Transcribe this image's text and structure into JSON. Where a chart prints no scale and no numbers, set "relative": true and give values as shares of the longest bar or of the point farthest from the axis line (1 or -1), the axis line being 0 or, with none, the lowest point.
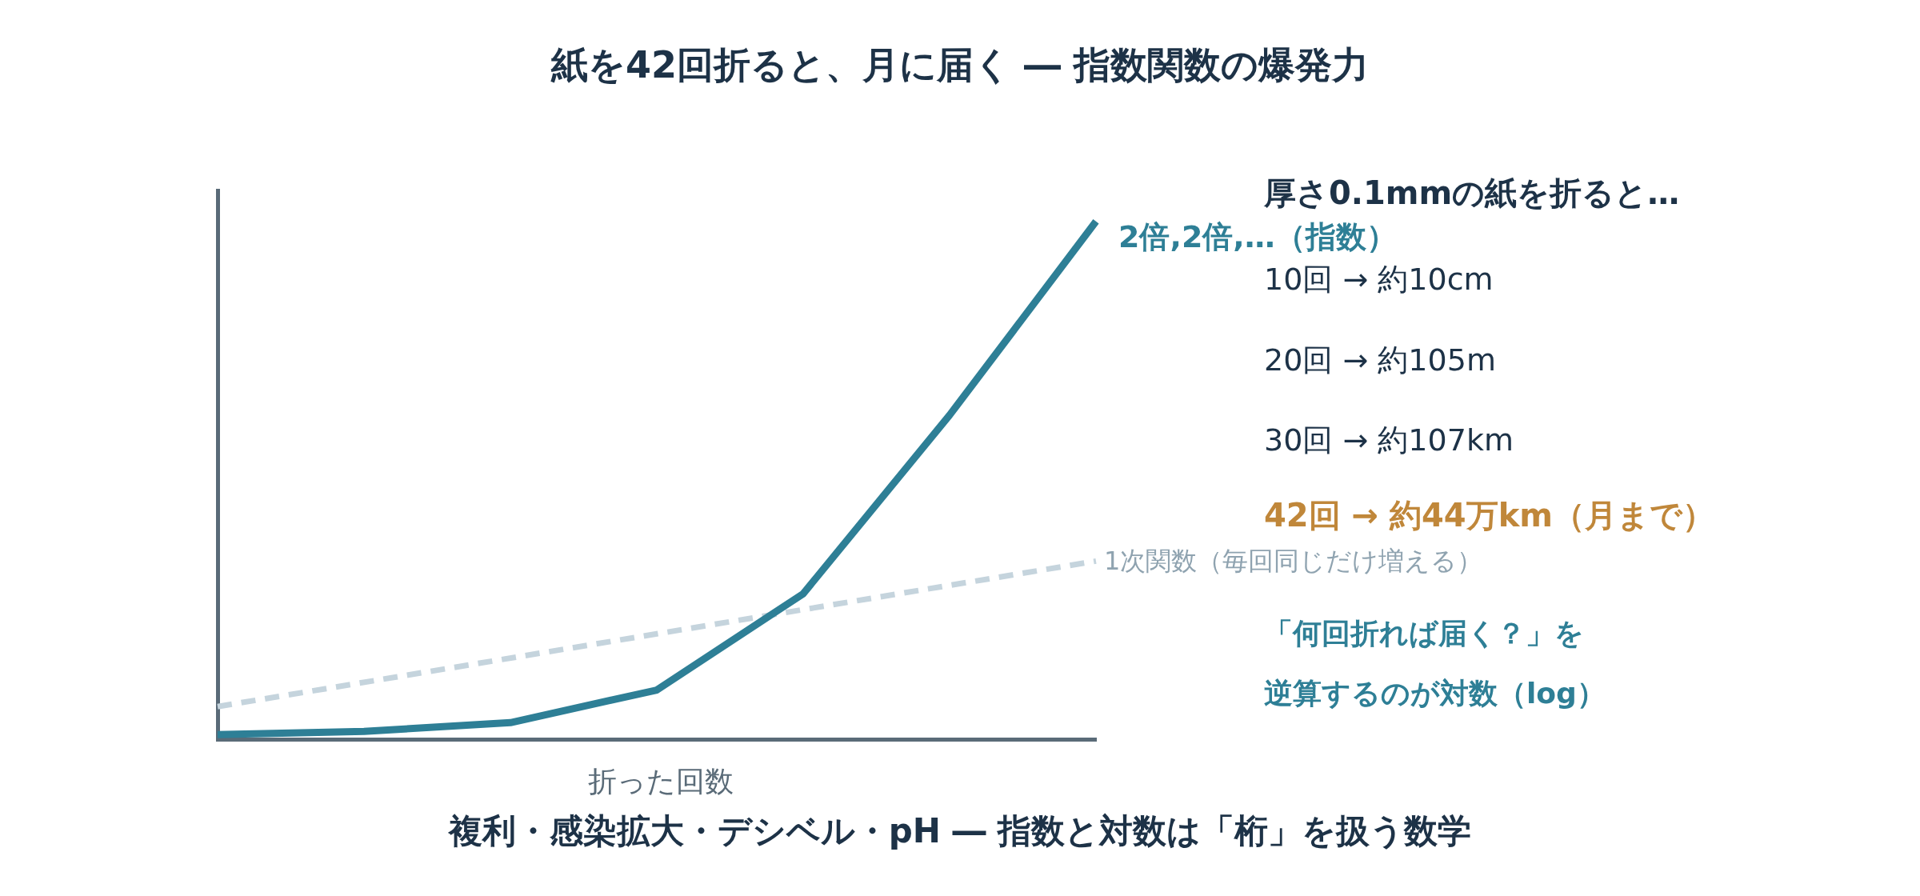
{
  "chart_data": {
    "type": "line",
    "title": "紙を42回折ると、月に届く ― 指数関数の爆発力",
    "xlabel": "折った回数",
    "relative": true,
    "grid": false,
    "legend": false,
    "marker": "none",
    "categories": [
      null,
      null,
      null,
      null,
      null,
      null,
      null
    ],
    "series": [
      {
        "name": "2倍,2倍,…（指数）",
        "color": "#2e7f96",
        "values": [
          0.009,
          0.015,
          0.032,
          0.095,
          0.281,
          0.626,
          1
        ],
        "line_style": "solid"
      },
      {
        "name": "1次関数（毎回同じだけ増える）",
        "color": "#c5d4dd",
        "values": [
          0.063,
          null,
          null,
          null,
          null,
          null,
          0.344
        ],
        "line_style": "dashed"
      }
    ],
    "annotations": [
      "厚さ0.1mmの紙を折ると…",
      "10回 → 約10cm",
      "20回 → 約105m",
      "30回 → 約107km",
      "42回 → 約44万km（月まで）",
      "「何回折れば届く？」を",
      "逆算するのが対数（log）",
      "複利・感染拡大・デシベル・pH ― 指数と対数は「桁」を扱う数学"
    ]
  }
}
